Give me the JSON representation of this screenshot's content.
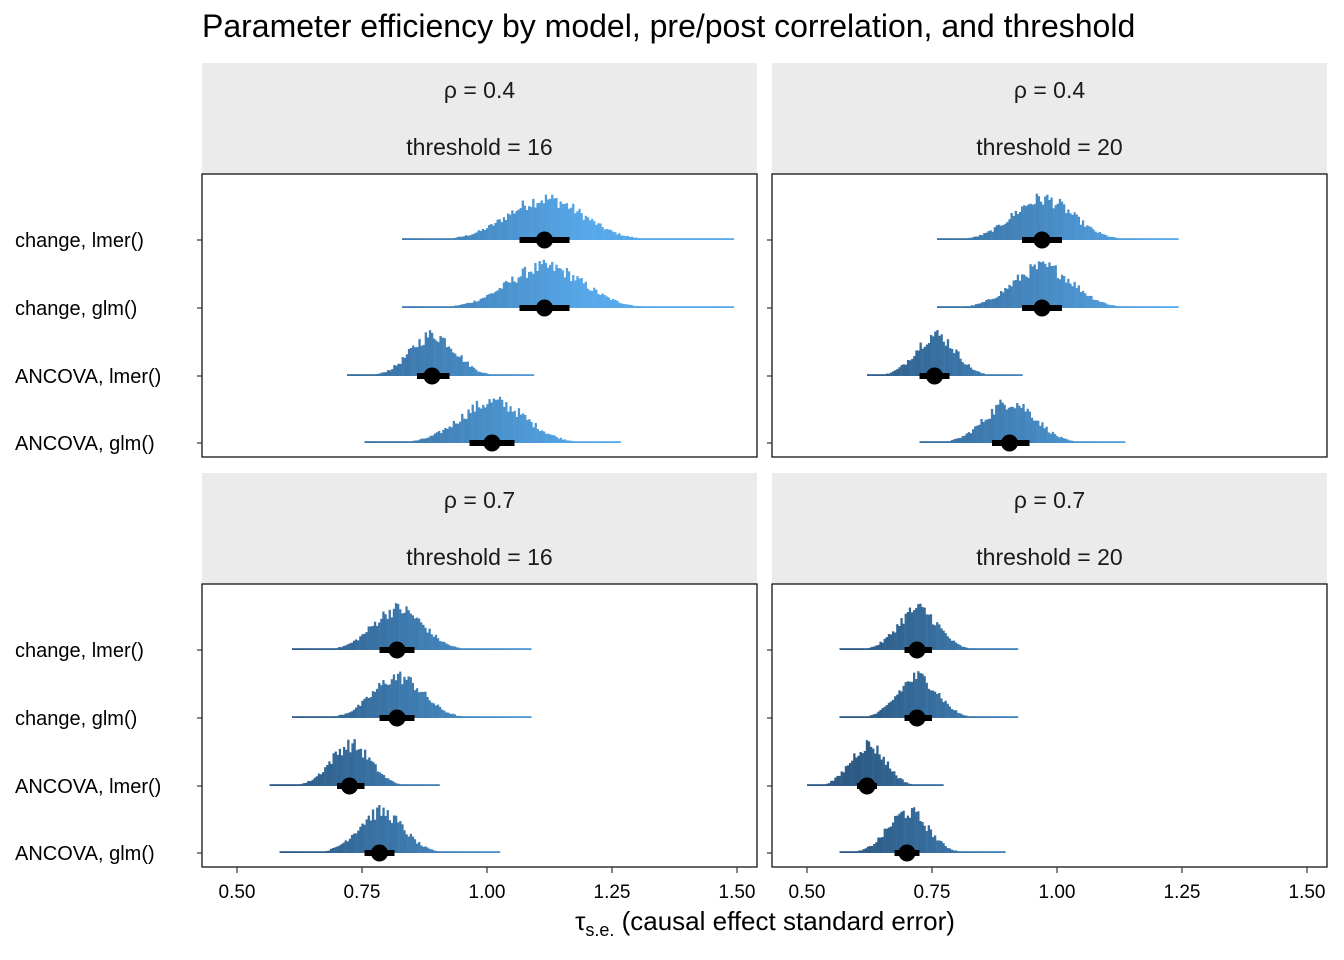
{
  "chart_data": {
    "type": "dotplot-interval",
    "title": "Parameter efficiency by model, pre/post correlation, and threshold",
    "xlabel_symbol": "τ",
    "xlabel_subscript": "s.e.",
    "xlabel_text": " (causal effect standard error)",
    "xlim": [
      0.45,
      1.52
    ],
    "xticks": [
      0.5,
      0.75,
      1.0,
      1.25,
      1.5
    ],
    "xtick_labels": [
      "0.50",
      "0.75",
      "1.00",
      "1.25",
      "1.50"
    ],
    "grid": false,
    "color_low": "#2c5a85",
    "color_high": "#56a8ea",
    "color_low_value": 0.6,
    "color_high_value": 1.2,
    "categories": [
      "change, lmer()",
      "change, glm()",
      "ANCOVA, lmer()",
      "ANCOVA, glm()"
    ],
    "panels": [
      {
        "rho_label": "ρ = 0.4",
        "threshold_label": "threshold = 16",
        "series": [
          {
            "model": "change, lmer()",
            "median": 1.115,
            "q25": 1.065,
            "q75": 1.165,
            "min": 0.83,
            "max": 1.49,
            "sd": 0.075
          },
          {
            "model": "change, glm()",
            "median": 1.115,
            "q25": 1.065,
            "q75": 1.165,
            "min": 0.83,
            "max": 1.49,
            "sd": 0.075
          },
          {
            "model": "ANCOVA, lmer()",
            "median": 0.89,
            "q25": 0.86,
            "q75": 0.925,
            "min": 0.72,
            "max": 1.09,
            "sd": 0.045
          },
          {
            "model": "ANCOVA, glm()",
            "median": 1.01,
            "q25": 0.965,
            "q75": 1.055,
            "min": 0.755,
            "max": 1.265,
            "sd": 0.065
          }
        ]
      },
      {
        "rho_label": "ρ = 0.4",
        "threshold_label": "threshold = 20",
        "series": [
          {
            "model": "change, lmer()",
            "median": 0.97,
            "q25": 0.93,
            "q75": 1.01,
            "min": 0.76,
            "max": 1.24,
            "sd": 0.06
          },
          {
            "model": "change, glm()",
            "median": 0.97,
            "q25": 0.93,
            "q75": 1.01,
            "min": 0.76,
            "max": 1.24,
            "sd": 0.06
          },
          {
            "model": "ANCOVA, lmer()",
            "median": 0.755,
            "q25": 0.725,
            "q75": 0.785,
            "min": 0.62,
            "max": 0.93,
            "sd": 0.04
          },
          {
            "model": "ANCOVA, glm()",
            "median": 0.905,
            "q25": 0.87,
            "q75": 0.945,
            "min": 0.725,
            "max": 1.135,
            "sd": 0.05
          }
        ]
      },
      {
        "rho_label": "ρ = 0.7",
        "threshold_label": "threshold = 16",
        "series": [
          {
            "model": "change, lmer()",
            "median": 0.82,
            "q25": 0.785,
            "q75": 0.855,
            "min": 0.61,
            "max": 1.085,
            "sd": 0.05
          },
          {
            "model": "change, glm()",
            "median": 0.82,
            "q25": 0.785,
            "q75": 0.855,
            "min": 0.61,
            "max": 1.085,
            "sd": 0.05
          },
          {
            "model": "ANCOVA, lmer()",
            "median": 0.725,
            "q25": 0.7,
            "q75": 0.755,
            "min": 0.565,
            "max": 0.905,
            "sd": 0.04
          },
          {
            "model": "ANCOVA, glm()",
            "median": 0.785,
            "q25": 0.755,
            "q75": 0.815,
            "min": 0.585,
            "max": 1.025,
            "sd": 0.045
          }
        ]
      },
      {
        "rho_label": "ρ = 0.7",
        "threshold_label": "threshold = 20",
        "series": [
          {
            "model": "change, lmer()",
            "median": 0.72,
            "q25": 0.695,
            "q75": 0.75,
            "min": 0.565,
            "max": 0.92,
            "sd": 0.04
          },
          {
            "model": "change, glm()",
            "median": 0.72,
            "q25": 0.695,
            "q75": 0.75,
            "min": 0.565,
            "max": 0.92,
            "sd": 0.04
          },
          {
            "model": "ANCOVA, lmer()",
            "median": 0.62,
            "q25": 0.6,
            "q75": 0.64,
            "min": 0.5,
            "max": 0.77,
            "sd": 0.035
          },
          {
            "model": "ANCOVA, glm()",
            "median": 0.7,
            "q25": 0.675,
            "q75": 0.725,
            "min": 0.565,
            "max": 0.895,
            "sd": 0.04
          }
        ]
      }
    ]
  }
}
